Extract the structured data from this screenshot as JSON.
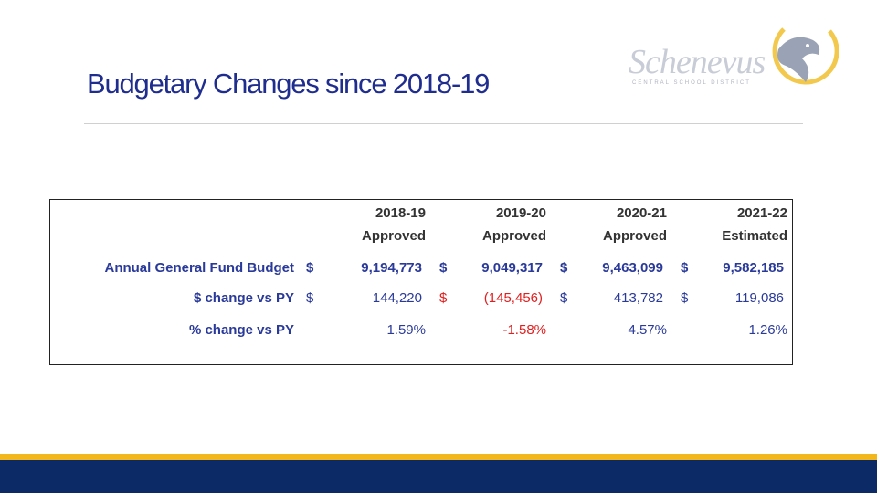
{
  "header": {
    "title": "Budgetary Changes since 2018-19"
  },
  "logo": {
    "name": "Schenevus",
    "subtitle": "CENTRAL SCHOOL DISTRICT"
  },
  "table": {
    "columns": [
      "2018-19",
      "2019-20",
      "2020-21",
      "2021-22"
    ],
    "subcolumns": [
      "Approved",
      "Approved",
      "Approved",
      "Estimated"
    ],
    "rows": [
      {
        "label": "Annual General Fund Budget",
        "cells": [
          [
            "$",
            "9,194,773"
          ],
          [
            "$",
            "9,049,317"
          ],
          [
            "$",
            "9,463,099"
          ],
          [
            "$",
            "9,582,185"
          ]
        ]
      },
      {
        "label": "$ change vs PY",
        "cells": [
          [
            "$",
            "144,220"
          ],
          [
            "$",
            "(145,456)"
          ],
          [
            "$",
            "413,782"
          ],
          [
            "$",
            "119,086"
          ]
        ]
      },
      {
        "label": "% change vs PY",
        "cells": [
          [
            null,
            "1.59%"
          ],
          [
            null,
            "-1.58%"
          ],
          [
            null,
            "4.57%"
          ],
          [
            null,
            "1.26%"
          ]
        ]
      }
    ]
  }
}
